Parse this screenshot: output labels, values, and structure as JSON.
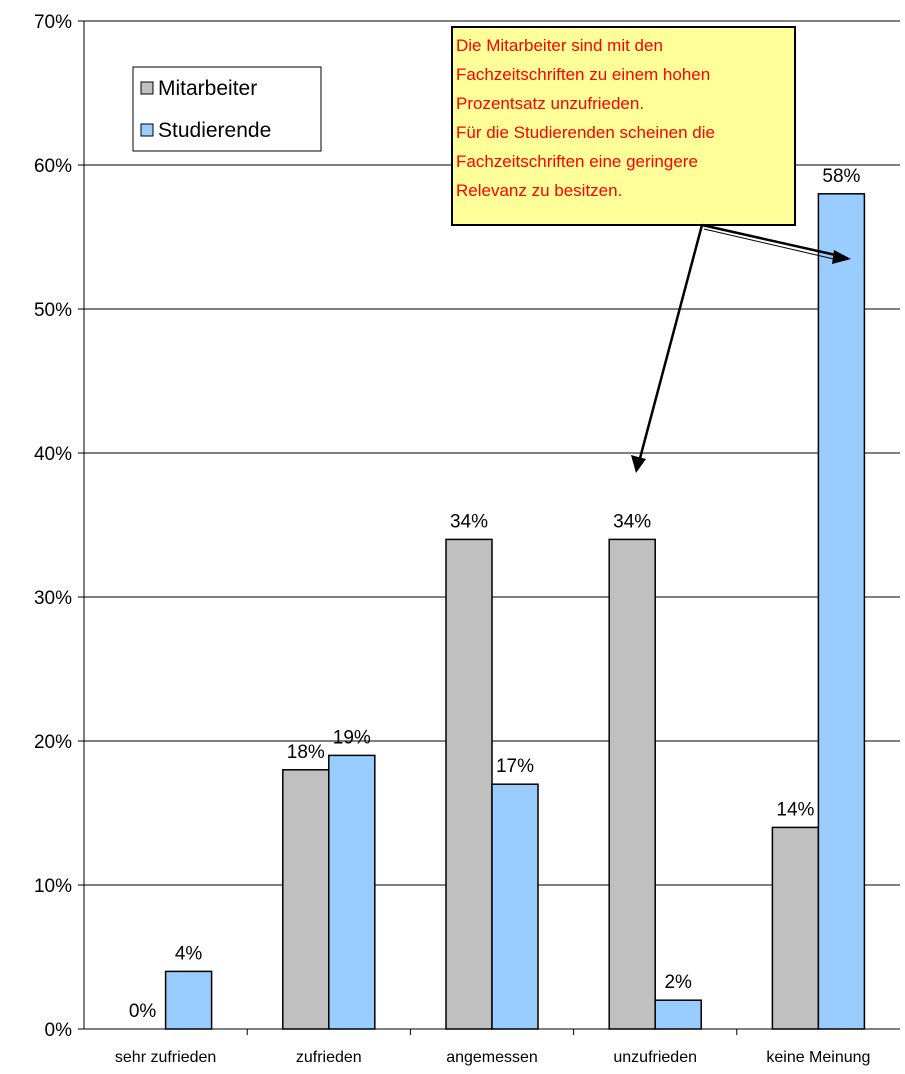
{
  "chart_data": {
    "type": "bar",
    "categories": [
      "sehr zufrieden",
      "zufrieden",
      "angemessen",
      "unzufrieden",
      "keine Meinung"
    ],
    "series": [
      {
        "name": "Mitarbeiter",
        "values": [
          0,
          18,
          34,
          34,
          14
        ],
        "labels": [
          "0%",
          "18%",
          "34%",
          "34%",
          "14%"
        ],
        "color": "#c0c0c0"
      },
      {
        "name": "Studierende",
        "values": [
          4,
          19,
          17,
          2,
          58
        ],
        "labels": [
          "4%",
          "19%",
          "17%",
          "2%",
          "58%"
        ],
        "color": "#99ccff"
      }
    ],
    "ylim": [
      0,
      70
    ],
    "yticks": [
      0,
      10,
      20,
      30,
      40,
      50,
      60,
      70
    ],
    "ytick_labels": [
      "0%",
      "10%",
      "20%",
      "30%",
      "40%",
      "50%",
      "60%",
      "70%"
    ],
    "grid": true,
    "legend": "top-left",
    "title": "",
    "xlabel": "",
    "ylabel": "",
    "annotation": {
      "lines": [
        "Die Mitarbeiter sind mit den",
        "Fachzeitschriften zu einem hohen",
        "Prozentsatz unzufrieden.",
        "Für die Studierenden scheinen die",
        "Fachzeitschriften eine geringere",
        "Relevanz zu besitzen."
      ],
      "background": "#ffff99",
      "text_color": "#ff0000"
    }
  }
}
